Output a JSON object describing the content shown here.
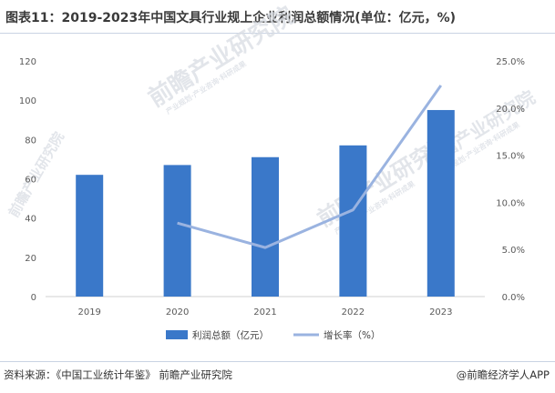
{
  "header": {
    "title": "图表11：2019-2023年中国文具行业规上企业利润总额情况(单位：亿元，%)"
  },
  "watermark": {
    "brand": "前瞻产业研究院",
    "tagline": "产业规划·产业咨询·科研成果"
  },
  "footer": {
    "source": "资料来源：《中国工业统计年鉴》 前瞻产业研究院",
    "brand": "@前瞻经济学人APP"
  },
  "chart_data": {
    "type": "bar",
    "categories": [
      "2019",
      "2020",
      "2021",
      "2022",
      "2023"
    ],
    "series": [
      {
        "name": "利润总额（亿元）",
        "type": "bar",
        "axis": "left",
        "color": "#3a78c9",
        "values": [
          62,
          67,
          71,
          77,
          95
        ]
      },
      {
        "name": "增长率（%）",
        "type": "line",
        "axis": "right",
        "color": "#9ab3e0",
        "values": [
          null,
          7.8,
          5.2,
          9.2,
          22.4
        ]
      }
    ],
    "left_axis": {
      "ylim": [
        0,
        120
      ],
      "ticks": [
        "0",
        "20",
        "40",
        "60",
        "80",
        "100",
        "120"
      ]
    },
    "right_axis": {
      "ylim": [
        0,
        25
      ],
      "ticks": [
        "0.0%",
        "5.0%",
        "10.0%",
        "15.0%",
        "20.0%",
        "25.0%"
      ]
    },
    "grid": false,
    "legend": "bottom"
  }
}
